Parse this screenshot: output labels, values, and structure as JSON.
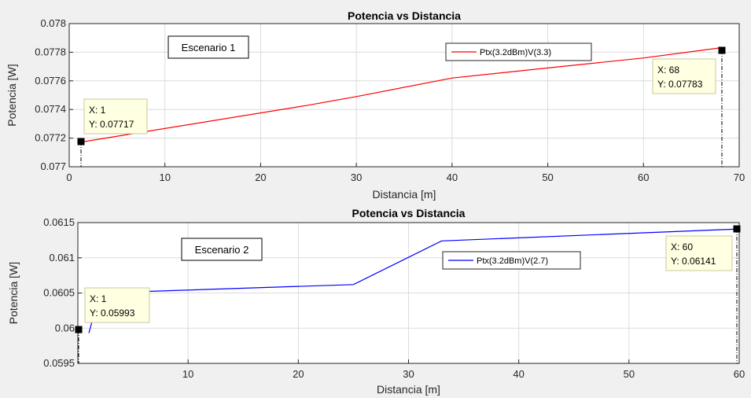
{
  "chart_data": [
    {
      "type": "line",
      "title": "Potencia vs Distancia",
      "xlabel": "Distancia [m]",
      "ylabel": "Potencia [W]",
      "xlim": [
        0,
        70
      ],
      "ylim": [
        0.077,
        0.078
      ],
      "xticks": [
        0,
        10,
        20,
        30,
        40,
        50,
        60,
        70
      ],
      "xtick_labels": [
        "0",
        "10",
        "20",
        "30",
        "40",
        "50",
        "60",
        "70"
      ],
      "yticks": [
        0.077,
        0.0772,
        0.0774,
        0.0776,
        0.0778,
        0.078
      ],
      "ytick_labels": [
        "0.077",
        "0.0772",
        "0.0774",
        "0.0776",
        "0.0778",
        "0.078"
      ],
      "grid": true,
      "legend_position": "top-center",
      "series": [
        {
          "name": "Ptx(3.2dBm)V(3.3)",
          "color": "#ff0000",
          "x": [
            1,
            25,
            30,
            40,
            50,
            60,
            68
          ],
          "y": [
            0.07717,
            0.07743,
            0.07749,
            0.07762,
            0.07769,
            0.07776,
            0.07783
          ]
        }
      ],
      "annotation": "Escenario 1",
      "datatips": [
        {
          "x": 1,
          "y": 0.07717,
          "line1": "X: 1",
          "line2": "Y: 0.07717"
        },
        {
          "x": 68,
          "y": 0.07783,
          "line1": "X: 68",
          "line2": "Y: 0.07783"
        }
      ]
    },
    {
      "type": "line",
      "title": "Potencia vs Distancia",
      "xlabel": "Distancia [m]",
      "ylabel": "Potencia [W]",
      "xlim": [
        0,
        60
      ],
      "ylim": [
        0.0595,
        0.0615
      ],
      "xticks": [
        10,
        20,
        30,
        40,
        50,
        60
      ],
      "xtick_labels": [
        "10",
        "20",
        "30",
        "40",
        "50",
        "60"
      ],
      "yticks": [
        0.0595,
        0.06,
        0.0605,
        0.061,
        0.0615
      ],
      "ytick_labels": [
        "0.0595",
        "0.06",
        "0.0605",
        "0.061",
        "0.0615"
      ],
      "grid": true,
      "legend_position": "center",
      "series": [
        {
          "name": "Ptx(3.2dBm)V(2.7)",
          "color": "#0000ff",
          "x": [
            1,
            2,
            25,
            33,
            60
          ],
          "y": [
            0.05993,
            0.0605,
            0.06062,
            0.06124,
            0.06141
          ]
        }
      ],
      "annotation": "Escenario 2",
      "datatips": [
        {
          "x": 1,
          "y": 0.05993,
          "line1": "X: 1",
          "line2": "Y: 0.05993"
        },
        {
          "x": 60,
          "y": 0.06141,
          "line1": "X: 60",
          "line2": "Y: 0.06141"
        }
      ]
    }
  ]
}
